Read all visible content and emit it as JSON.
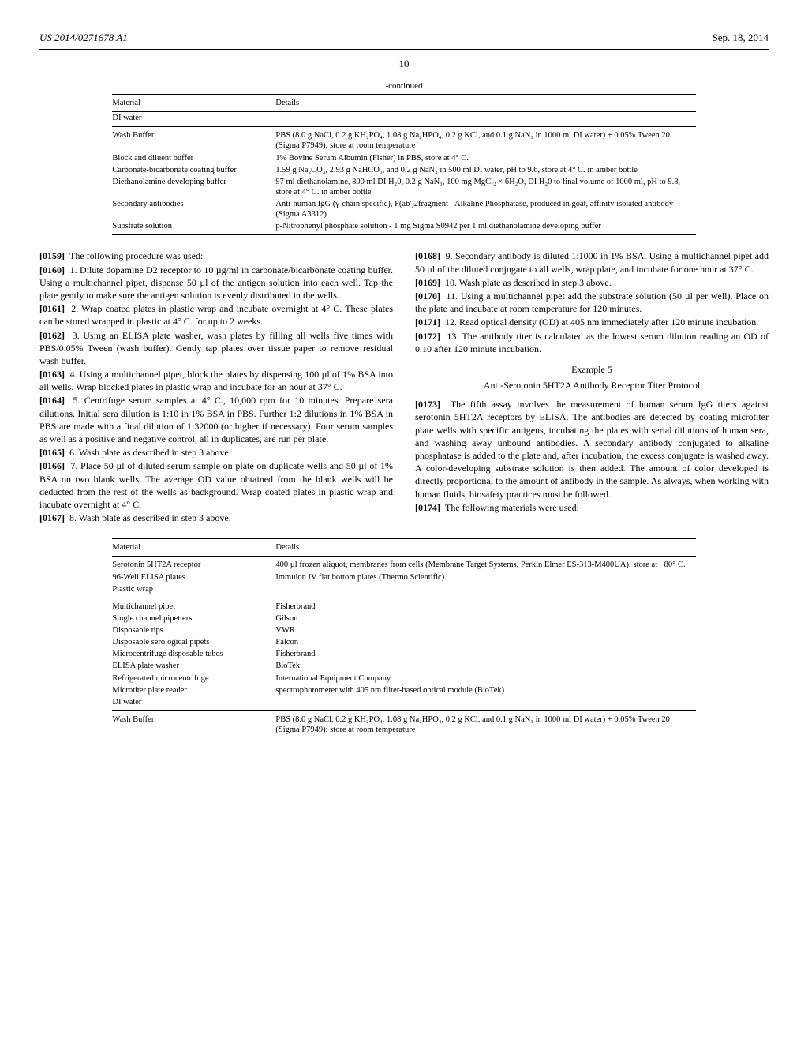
{
  "header": {
    "pub_number": "US 2014/0271678 A1",
    "pub_date": "Sep. 18, 2014",
    "page_number": "10"
  },
  "table1": {
    "continued_label": "-continued",
    "columns": [
      "Material",
      "Details"
    ],
    "rows_top": [
      {
        "mat": "DI water",
        "det": ""
      }
    ],
    "rows_bottom": [
      {
        "mat": "Wash Buffer",
        "det": "PBS (8.0 g NaCl, 0.2 g KH₂PO₄, 1.08 g Na₂HPO₄, 0.2 g KCl, and 0.1 g NaN₃ in 1000 ml DI water) + 0.05% Tween 20 (Sigma P7949); store at room temperature"
      },
      {
        "mat": "Block and diluent buffer",
        "det": "1% Bovine Serum Albumin (Fisher) in PBS, store at 4° C."
      },
      {
        "mat": "Carbonate-bicarbonate coating buffer",
        "det": "1.59 g Na₂CO₃, 2.93 g NaHCO₃, and 0.2 g NaN₃ in 500 ml DI water, pH to 9.6, store at 4° C. in amber bottle"
      },
      {
        "mat": "Diethanolamine developing buffer",
        "det": "97 ml diethanolamine, 800 ml DI H₂0, 0.2 g NaN₃, 100 mg MgCl₂ × 6H₂O, DI H₂0 to final volume of 1000 ml, pH to 9.8, store at 4° C. in amber bottle"
      },
      {
        "mat": "Secondary antibodies",
        "det": "Anti-human IgG (γ-chain specific), F(ab')2fragment - Alkaline Phosphatase, produced in goat, affinity isolated antibody (Sigma A3312)"
      },
      {
        "mat": "Substrate solution",
        "det": "p-Nitrophenyl phosphate solution - 1 mg Sigma S0942 per 1 ml diethanolamine developing buffer"
      }
    ]
  },
  "paragraphs": [
    {
      "num": "[0159]",
      "text": "The following procedure was used:"
    },
    {
      "num": "[0160]",
      "text": "1. Dilute dopamine D2 receptor to 10 µg/ml in carbonate/bicarbonate coating buffer. Using a multichannel pipet, dispense 50 µl of the antigen solution into each well. Tap the plate gently to make sure the antigen solution is evenly distributed in the wells."
    },
    {
      "num": "[0161]",
      "text": "2. Wrap coated plates in plastic wrap and incubate overnight at 4° C. These plates can be stored wrapped in plastic at 4° C. for up to 2 weeks."
    },
    {
      "num": "[0162]",
      "text": "3. Using an ELISA plate washer, wash plates by filling all wells five times with PBS/0.05% Tween (wash buffer). Gently tap plates over tissue paper to remove residual wash buffer."
    },
    {
      "num": "[0163]",
      "text": "4. Using a multichannel pipet, block the plates by dispensing 100 µl of 1% BSA into all wells. Wrap blocked plates in plastic wrap and incubate for an hour at 37° C."
    },
    {
      "num": "[0164]",
      "text": "5. Centrifuge serum samples at 4° C., 10,000 rpm for 10 minutes. Prepare sera dilutions. Initial sera dilution is 1:10 in 1% BSA in PBS. Further 1:2 dilutions in 1% BSA in PBS are made with a final dilution of 1:32000 (or higher if necessary). Four serum samples as well as a positive and negative control, all in duplicates, are run per plate."
    },
    {
      "num": "[0165]",
      "text": "6. Wash plate as described in step 3 above."
    },
    {
      "num": "[0166]",
      "text": "7. Place 50 µl of diluted serum sample on plate on duplicate wells and 50 µl of 1% BSA on two blank wells. The average OD value obtained from the blank wells will be deducted from the rest of the wells as background. Wrap coated plates in plastic wrap and incubate overnight at 4° C."
    },
    {
      "num": "[0167]",
      "text": "8. Wash plate as described in step 3 above."
    },
    {
      "num": "[0168]",
      "text": "9. Secondary antibody is diluted 1:1000 in 1% BSA. Using a multichannel pipet add 50 µl of the diluted conjugate to all wells, wrap plate, and incubate for one hour at 37° C."
    },
    {
      "num": "[0169]",
      "text": "10. Wash plate as described in step 3 above."
    },
    {
      "num": "[0170]",
      "text": "11. Using a multichannel pipet add the substrate solution (50 µl per well). Place on the plate and incubate at room temperature for 120 minutes."
    },
    {
      "num": "[0171]",
      "text": "12. Read optical density (OD) at 405 nm immediately after 120 minute incubation."
    },
    {
      "num": "[0172]",
      "text": "13. The antibody titer is calculated as the lowest serum dilution reading an OD of 0.10 after 120 minute incubation."
    }
  ],
  "example": {
    "label": "Example 5",
    "title": "Anti-Serotonin 5HT2A Antibody Receptor Titer Protocol",
    "intro_num": "[0173]",
    "intro_text": "The fifth assay involves the measurement of human serum IgG titers against serotonin 5HT2A receptors by ELISA. The antibodies are detected by coating microtiter plate wells with specific antigens, incubating the plates with serial dilutions of human sera, and washing away unbound antibodies. A secondary antibody conjugated to alkaline phosphatase is added to the plate and, after incubation, the excess conjugate is washed away. A color-developing substrate solution is then added. The amount of color developed is directly proportional to the amount of antibody in the sample. As always, when working with human fluids, biosafety practices must be followed.",
    "materials_num": "[0174]",
    "materials_text": "The following materials were used:"
  },
  "table2": {
    "columns": [
      "Material",
      "Details"
    ],
    "block1": [
      {
        "mat": "Serotonin 5HT2A receptor",
        "det": "400 µl frozen aliquot, membranes from cells (Membrane Target Systems, Perkin Elmer ES-313-M400UA); store at −80° C."
      },
      {
        "mat": "96-Well ELISA plates",
        "det": "Immulon IV flat bottom plates (Thermo Scientific)"
      },
      {
        "mat": "Plastic wrap",
        "det": ""
      }
    ],
    "block2": [
      {
        "mat": "Multichannel pipet",
        "det": "Fisherbrand"
      },
      {
        "mat": "Single channel pipetters",
        "det": "Gilson"
      },
      {
        "mat": "Disposable tips",
        "det": "VWR"
      },
      {
        "mat": "Disposable serological pipets",
        "det": "Falcon"
      },
      {
        "mat": "Microcentrifuge disposable tubes",
        "det": "Fisherbrand"
      },
      {
        "mat": "ELISA plate washer",
        "det": "BioTek"
      },
      {
        "mat": "Refrigerated microcentrifuge",
        "det": "International Equipment Company"
      },
      {
        "mat": "Microtiter plate reader",
        "det": "spectrophotometer with 405 nm filter-based optical module (BioTek)"
      },
      {
        "mat": "DI water",
        "det": ""
      }
    ],
    "block3": [
      {
        "mat": "Wash Buffer",
        "det": "PBS (8.0 g NaCl, 0.2 g KH₂PO₄, 1.08 g Na₂HPO₄, 0.2 g KCl, and 0.1 g NaN₃ in 1000 ml DI water) + 0.05% Tween 20 (Sigma P7949); store at room temperature"
      }
    ]
  }
}
